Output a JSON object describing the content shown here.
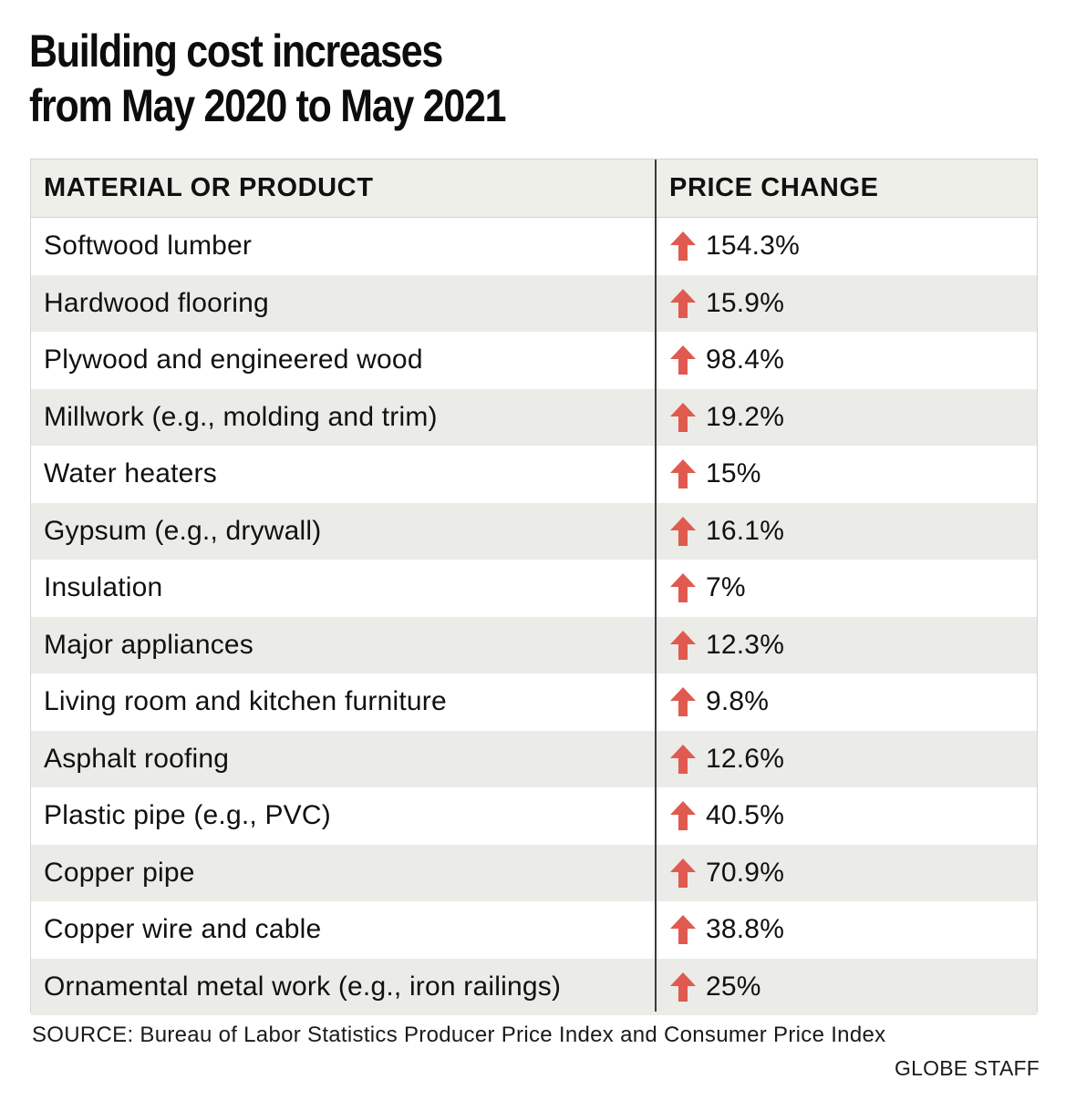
{
  "title_lines": [
    "Building cost increases",
    "from May 2020 to May 2021"
  ],
  "source": "SOURCE: Bureau of Labor Statistics Producer Price Index and Consumer Price Index",
  "credit": "GLOBE STAFF",
  "colors": {
    "arrow": "#e05a4f",
    "header_bg": "#efefea",
    "stripe_bg": "#ebebe8",
    "divider": "#3a3a3a"
  },
  "chart_data": {
    "type": "table",
    "title": "Building cost increases from May 2020 to May 2021",
    "columns": [
      "MATERIAL OR PRODUCT",
      "PRICE CHANGE"
    ],
    "direction_icon": "up-arrow-icon",
    "rows": [
      {
        "material": "Softwood lumber",
        "change": "154.3%",
        "value": 154.3
      },
      {
        "material": "Hardwood flooring",
        "change": "15.9%",
        "value": 15.9
      },
      {
        "material": "Plywood and engineered wood",
        "change": "98.4%",
        "value": 98.4
      },
      {
        "material": "Millwork (e.g., molding and trim)",
        "change": "19.2%",
        "value": 19.2
      },
      {
        "material": "Water heaters",
        "change": "15%",
        "value": 15
      },
      {
        "material": "Gypsum (e.g., drywall)",
        "change": "16.1%",
        "value": 16.1
      },
      {
        "material": "Insulation",
        "change": "7%",
        "value": 7
      },
      {
        "material": "Major appliances",
        "change": "12.3%",
        "value": 12.3
      },
      {
        "material": "Living room and kitchen furniture",
        "change": "9.8%",
        "value": 9.8
      },
      {
        "material": "Asphalt roofing",
        "change": "12.6%",
        "value": 12.6
      },
      {
        "material": "Plastic pipe (e.g., PVC)",
        "change": "40.5%",
        "value": 40.5
      },
      {
        "material": "Copper pipe",
        "change": "70.9%",
        "value": 70.9
      },
      {
        "material": "Copper wire and cable",
        "change": "38.8%",
        "value": 38.8
      },
      {
        "material": "Ornamental metal work (e.g., iron railings)",
        "change": "25%",
        "value": 25
      }
    ]
  }
}
